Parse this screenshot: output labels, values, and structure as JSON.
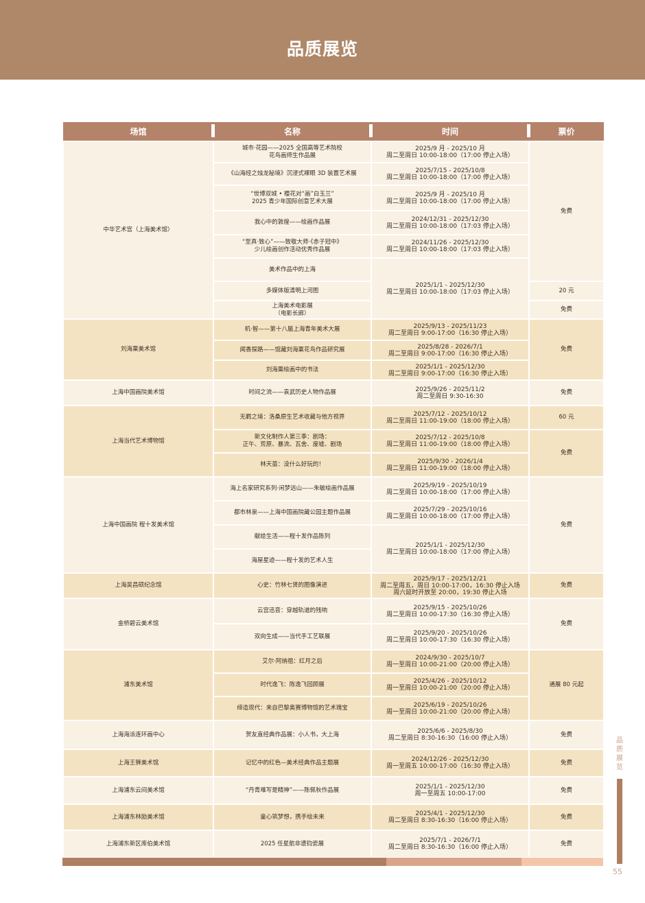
{
  "header": {
    "title": "品质展览"
  },
  "columns": [
    "场馆",
    "名称",
    "时间",
    "票价"
  ],
  "venues": [
    {
      "name": "中华艺术宫（上海美术馆）",
      "exhibitions": [
        {
          "name": "城市·花园——2025 全国高等艺术院校\n花鸟画师生作品展",
          "time": "2025/9 月 - 2025/10 月\n周二至周日 10:00-18:00（17:00 停止入场）",
          "price": "免费"
        },
        {
          "name": "《山海经之烛龙秘境》沉浸式裸眼 3D 装置艺术展",
          "time": "2025/7/15 - 2025/10/8\n周二至周日 10:00-18:00（17:00 停止入场）"
        },
        {
          "name": "“世博双城 • 樱花对“画”白玉兰”\n2025 青少年国际创意艺术大展",
          "time": "2025/9 月 - 2025/10 月\n周二至周日 10:00-18:00（17:00 停止入场）"
        },
        {
          "name": "我心中的敦煌——绘画作品展",
          "time": "2024/12/31 - 2025/12/30\n周二至周日 10:00-18:00（17:03 停止入场）"
        },
        {
          "name": "“至真·致心”——致敬大师·《赤子冠中》\n少儿绘画创作活动优秀作品展",
          "time": "2024/11/26 - 2025/12/30\n周二至周日 10:00-18:00（17:03 停止入场）"
        },
        {
          "name": "美术作品中的上海",
          "time": "2025/1/1 - 2025/12/30\n周二至周日 10:00-18:00（17:03 停止入场）"
        },
        {
          "name": "多媒体版清明上河图",
          "price": "20 元"
        },
        {
          "name": "上海美术电影展\n（电影长廊）",
          "price": "免费"
        }
      ]
    },
    {
      "name": "刘海粟美术馆",
      "exhibitions": [
        {
          "name": "机·智——第十八届上海青年美术大展",
          "time": "2025/9/13 - 2025/11/23\n周二至周日 9:00-17:00（16:30 停止入场）",
          "price": "免费"
        },
        {
          "name": "闻香探路——馆藏刘海粟花鸟作品研究展",
          "time": "2025/8/28 - 2026/7/1\n周二至周日 9:00-17:00（16:30 停止入场）"
        },
        {
          "name": "刘海粟绘画中的书法",
          "time": "2025/1/1 - 2025/12/30\n周二至周日 9:00-17:00（16:30 停止入场）"
        }
      ]
    },
    {
      "name": "上海中国画院美术馆",
      "exhibitions": [
        {
          "name": "时间之流——袁武历史人物作品展",
          "time": "2025/9/26 - 2025/11/2\n周二至周日 9:30-16:30",
          "price": "免费"
        }
      ]
    },
    {
      "name": "上海当代艺术博物馆",
      "exhibitions": [
        {
          "name": "无羁之境：洛桑原生艺术收藏与他方视界",
          "time": "2025/7/12 - 2025/10/12\n周二至周日 11:00-19:00（18:00 停止入场）",
          "price": "60 元"
        },
        {
          "name": "新文化制作人第三季：剧场：\n正午、荒原、暴流、瓦舍、废墟、剧场",
          "time": "2025/7/12 - 2025/10/8\n周二至周日 11:00-19:00（18:00 停止入场）",
          "price": "免费"
        },
        {
          "name": "林天苗：没什么好玩的！",
          "time": "2025/9/30 - 2026/1/4\n周二至周日 11:00-19:00（18:00 停止入场）"
        }
      ]
    },
    {
      "name": "上海中国画院 程十发美术馆",
      "exhibitions": [
        {
          "name": "海上名家研究系列·闲梦远山——朱敏绘画作品展",
          "time": "2025/9/19 - 2025/10/19\n周二至周日 10:00-18:00（17:00 停止入场）",
          "price": "免费"
        },
        {
          "name": "都市林泉——上海中国画院藏公园主题作品展",
          "time": "2025/7/29 - 2025/10/16\n周二至周日 10:00-18:00（17:00 停止入场）"
        },
        {
          "name": "献给生活——程十发作品陈列",
          "time": "2025/1/1 - 2025/12/30\n周二至周日 10:00-18:00（17:00 停止入场）"
        },
        {
          "name": "海屋星迹——程十发的艺术人生"
        }
      ]
    },
    {
      "name": "上海吴昌硕纪念馆",
      "exhibitions": [
        {
          "name": "心史：竹林七贤的图像演进",
          "time": "2025/9/17 - 2025/12/21\n周二至周五，周日 10:00-17:00，16:30 停止入场\n周六延时开放至 20:00，19:30 停止入场",
          "price": "免费"
        }
      ]
    },
    {
      "name": "金桥碧云美术馆",
      "exhibitions": [
        {
          "name": "云宫迅音：穿越轨道的残响",
          "time": "2025/9/15 - 2025/10/26\n周二至周日 10:00-17:30（16:30 停止入场）",
          "price": "免费"
        },
        {
          "name": "双向生成——当代手工艺联展",
          "time": "2025/9/20 - 2025/10/26\n周二至周日 10:00-17:30（16:30 停止入场）"
        }
      ]
    },
    {
      "name": "浦东美术馆",
      "exhibitions": [
        {
          "name": "艾尔·阿纳祖：红月之后",
          "time": "2024/9/30 - 2025/10/7\n周一至周日 10:00-21:00（20:00 停止入场）",
          "price": "通展 80 元起"
        },
        {
          "name": "时代逸飞：陈逸飞回顾展",
          "time": "2025/4/26 - 2025/10/12\n周一至周日 10:00-21:00（20:00 停止入场）"
        },
        {
          "name": "缔造现代：来自巴黎奥赛博物馆的艺术瑰宝",
          "time": "2025/6/19 - 2025/10/26\n周一至周日 10:00-21:00（20:00 停止入场）"
        }
      ]
    },
    {
      "name": "上海海派连环画中心",
      "exhibitions": [
        {
          "name": "贺友直经典作品展：小人书，大上海",
          "time": "2025/6/6 - 2025/8/30\n周二至周日 8:30-16:30（16:00 停止入场）",
          "price": "免费"
        }
      ]
    },
    {
      "name": "上海王狮美术馆",
      "exhibitions": [
        {
          "name": "记忆中的红色—美术经典作品主题展",
          "time": "2024/12/26 - 2025/12/30\n周一至周五 10:00-17:00（16:30 停止入场）",
          "price": "免费"
        }
      ]
    },
    {
      "name": "上海浦东云间美术馆",
      "exhibitions": [
        {
          "name": "“丹青难写是精神”——陈佩秋作品展",
          "time": "2025/1/1 - 2025/12/30\n周一至周五 10:00-17:00",
          "price": "免费"
        }
      ]
    },
    {
      "name": "上海浦东林励美术馆",
      "exhibitions": [
        {
          "name": "童心筑梦想，携手绘未来",
          "time": "2025/4/1 - 2025/12/30\n周二至周日 8:30-16:30（16:00 停止入场）",
          "price": "免费"
        }
      ]
    },
    {
      "name": "上海浦东新区库伯美术馆",
      "exhibitions": [
        {
          "name": "2025 任星航非遗钧瓷展",
          "time": "2025/7/1 - 2026/7/1\n周二至周日 8:30-16:30（16:00 停止入场）",
          "price": "免费"
        }
      ]
    }
  ],
  "side": {
    "section_label": "品\n质\n展\n览",
    "page_number": "55"
  },
  "colors": {
    "banner": "#ae8869",
    "header": "#b5836a",
    "row_light": "#f9f1e3",
    "row_dark": "#f4e3c2",
    "bar_1": "#b07e62",
    "bar_2": "#d9a58a",
    "bar_3": "#f5c5aa"
  }
}
